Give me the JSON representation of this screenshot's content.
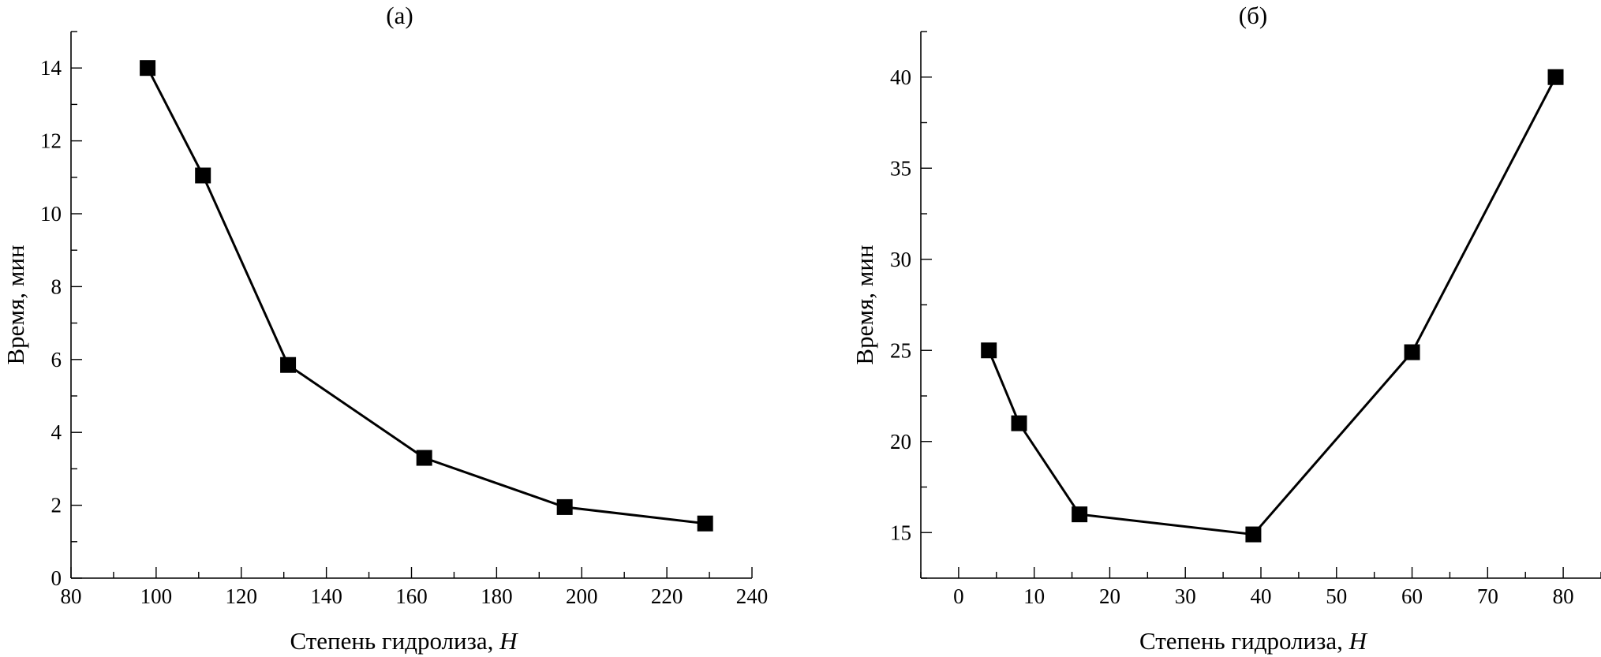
{
  "chart_data": [
    {
      "type": "line",
      "title": "(а)",
      "xlabel": "Степень гидролиза, ",
      "xlabel_var": "H",
      "ylabel": "Время, мин",
      "xlim": [
        80,
        240
      ],
      "ylim": [
        0,
        15
      ],
      "xticks": [
        80,
        100,
        120,
        140,
        160,
        180,
        200,
        220,
        240
      ],
      "yticks": [
        0,
        2,
        4,
        6,
        8,
        10,
        12,
        14
      ],
      "x": [
        98,
        111,
        131,
        163,
        196,
        229
      ],
      "y": [
        14,
        11.05,
        5.85,
        3.3,
        1.95,
        1.5
      ],
      "marker": "square",
      "grid": false
    },
    {
      "type": "line",
      "title": "(б)",
      "xlabel": "Степень гидролиза, ",
      "xlabel_var": "H",
      "ylabel": "Время, мин",
      "xlim": [
        -5,
        85
      ],
      "ylim": [
        12.5,
        42.5
      ],
      "xticks": [
        0,
        10,
        20,
        30,
        40,
        50,
        60,
        70,
        80
      ],
      "yticks": [
        15,
        20,
        25,
        30,
        35,
        40
      ],
      "x": [
        4,
        8,
        16,
        39,
        60,
        79
      ],
      "y": [
        25,
        21,
        16,
        14.9,
        24.9,
        40
      ],
      "marker": "square",
      "grid": false
    }
  ]
}
